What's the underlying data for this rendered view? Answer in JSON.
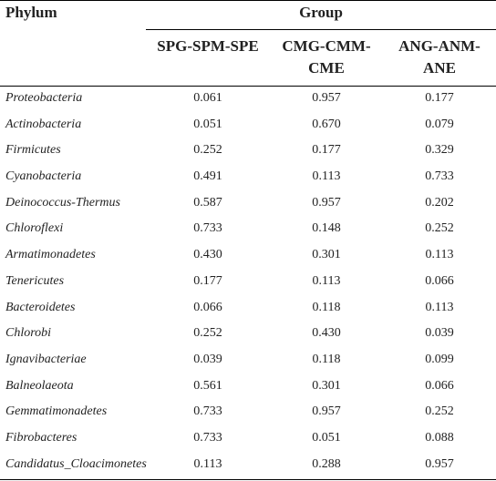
{
  "table": {
    "phylum_header": "Phylum",
    "group_header": "Group",
    "columns": [
      {
        "line1": "SPG-SPM-SPE",
        "line2": ""
      },
      {
        "line1": "CMG-CMM-",
        "line2": "CME"
      },
      {
        "line1": "ANG-ANM-",
        "line2": "ANE"
      }
    ],
    "rows": [
      {
        "name": "Proteobacteria",
        "v1": "0.061",
        "v2": "0.957",
        "v3": "0.177"
      },
      {
        "name": "Actinobacteria",
        "v1": "0.051",
        "v2": "0.670",
        "v3": "0.079"
      },
      {
        "name": "Firmicutes",
        "v1": "0.252",
        "v2": "0.177",
        "v3": "0.329"
      },
      {
        "name": "Cyanobacteria",
        "v1": "0.491",
        "v2": "0.113",
        "v3": "0.733"
      },
      {
        "name": "Deinococcus-Thermus",
        "v1": "0.587",
        "v2": "0.957",
        "v3": "0.202"
      },
      {
        "name": "Chloroflexi",
        "v1": "0.733",
        "v2": "0.148",
        "v3": "0.252"
      },
      {
        "name": "Armatimonadetes",
        "v1": "0.430",
        "v2": "0.301",
        "v3": "0.113"
      },
      {
        "name": "Tenericutes",
        "v1": "0.177",
        "v2": "0.113",
        "v3": "0.066"
      },
      {
        "name": "Bacteroidetes",
        "v1": "0.066",
        "v2": "0.118",
        "v3": "0.113"
      },
      {
        "name": "Chlorobi",
        "v1": "0.252",
        "v2": "0.430",
        "v3": "0.039"
      },
      {
        "name": "Ignavibacteriae",
        "v1": "0.039",
        "v2": "0.118",
        "v3": "0.099"
      },
      {
        "name": "Balneolaeota",
        "v1": "0.561",
        "v2": "0.301",
        "v3": "0.066"
      },
      {
        "name": "Gemmatimonadetes",
        "v1": "0.733",
        "v2": "0.957",
        "v3": "0.252"
      },
      {
        "name": "Fibrobacteres",
        "v1": "0.733",
        "v2": "0.051",
        "v3": "0.088"
      },
      {
        "name": "Candidatus_Cloacimonetes",
        "v1": "0.113",
        "v2": "0.288",
        "v3": "0.957"
      }
    ]
  }
}
